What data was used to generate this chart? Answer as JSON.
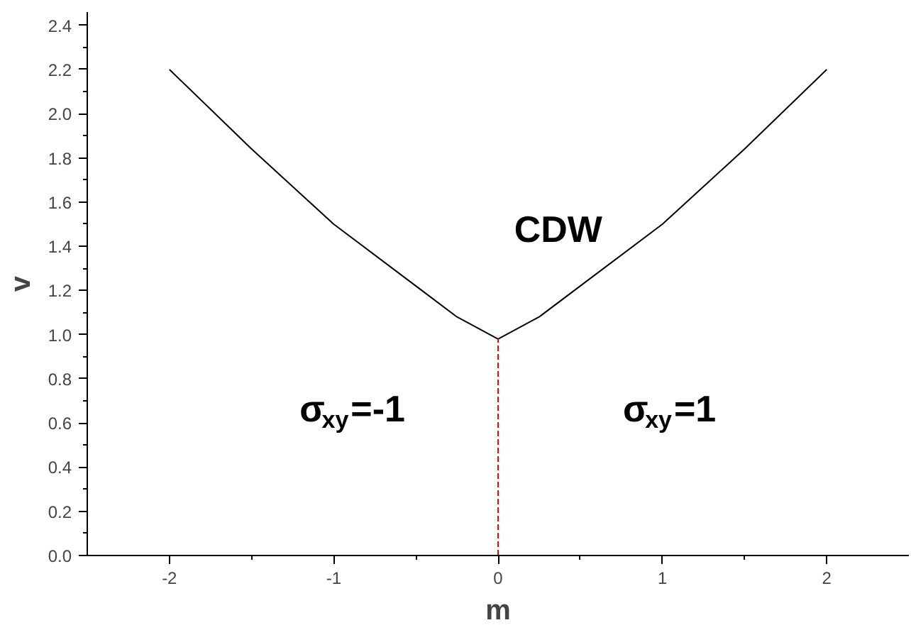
{
  "chart_data": {
    "type": "line",
    "xlabel": "m",
    "ylabel": "v",
    "xlim": [
      -2.5,
      2.5
    ],
    "ylim": [
      0,
      2.46
    ],
    "xticks": [
      -2,
      -1,
      0,
      1,
      2
    ],
    "yticks": [
      {
        "value": 0,
        "label": "0.0"
      },
      {
        "value": 0.2,
        "label": "0.2"
      },
      {
        "value": 0.4,
        "label": "0.4"
      },
      {
        "value": 0.6,
        "label": "0.6"
      },
      {
        "value": 0.8,
        "label": "0.8"
      },
      {
        "value": 1.0,
        "label": "1.0"
      },
      {
        "value": 1.2,
        "label": "1.2"
      },
      {
        "value": 1.4,
        "label": "1.4"
      },
      {
        "value": 1.6,
        "label": "1.6"
      },
      {
        "value": 1.8,
        "label": "1.8"
      },
      {
        "value": 2.0,
        "label": "2.0"
      },
      {
        "value": 2.2,
        "label": "2.2"
      },
      {
        "value": 2.4,
        "label": "2.4"
      }
    ],
    "grid": false,
    "series": [
      {
        "color": "#000000",
        "line_style": "solid",
        "x": [
          -2,
          -1.5,
          -1,
          -0.5,
          -0.25,
          0,
          0.25,
          0.5,
          1,
          1.5,
          2
        ],
        "values": [
          2.2,
          1.84,
          1.5,
          1.22,
          1.08,
          0.98,
          1.08,
          1.22,
          1.5,
          1.84,
          2.2
        ]
      },
      {
        "color": "#ff0000",
        "line_style": "dashed",
        "x": [
          0,
          0
        ],
        "values": [
          0,
          0.98
        ]
      }
    ],
    "annotations": [
      "CDW",
      "σ$_{xy}$=-1",
      "σ$_{xy}$=1"
    ]
  }
}
